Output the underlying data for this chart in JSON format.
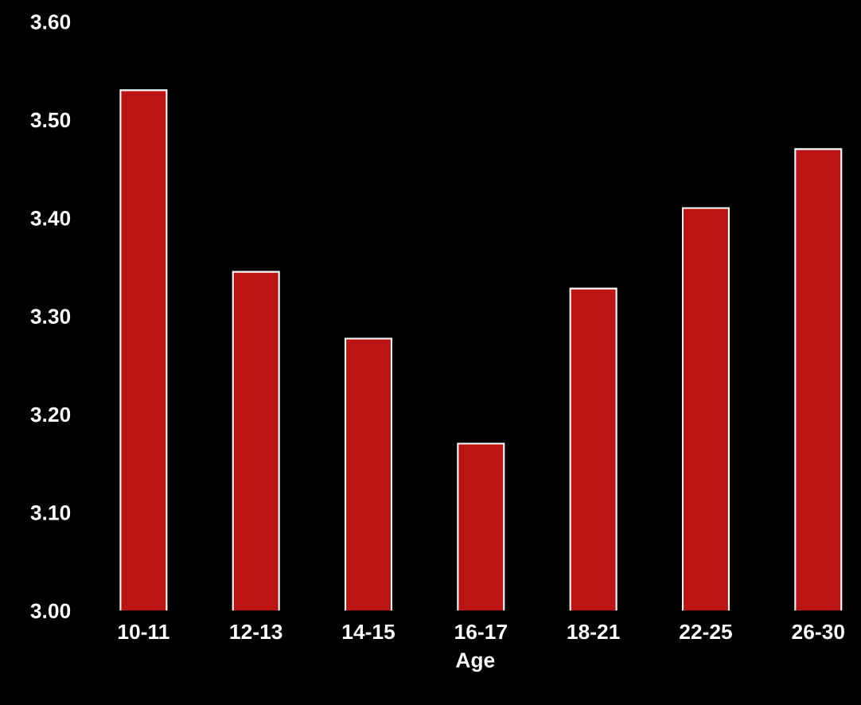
{
  "chart_data": {
    "type": "bar",
    "xlabel": "Age",
    "categories": [
      "10-11",
      "12-13",
      "14-15",
      "16-17",
      "18-21",
      "22-25",
      "26-30"
    ],
    "values": [
      3.53,
      3.345,
      3.277,
      3.17,
      3.328,
      3.41,
      3.47
    ],
    "color": "#bb1414",
    "ylim": [
      3.0,
      3.6
    ],
    "yticks": [
      {
        "value": 3.0,
        "label": "3.00"
      },
      {
        "value": 3.1,
        "label": "3.10"
      },
      {
        "value": 3.2,
        "label": "3.20"
      },
      {
        "value": 3.3,
        "label": "3.30"
      },
      {
        "value": 3.4,
        "label": "3.40"
      },
      {
        "value": 3.5,
        "label": "3.50"
      },
      {
        "value": 3.6,
        "label": "3.60"
      }
    ],
    "grid": false,
    "legend": false
  }
}
